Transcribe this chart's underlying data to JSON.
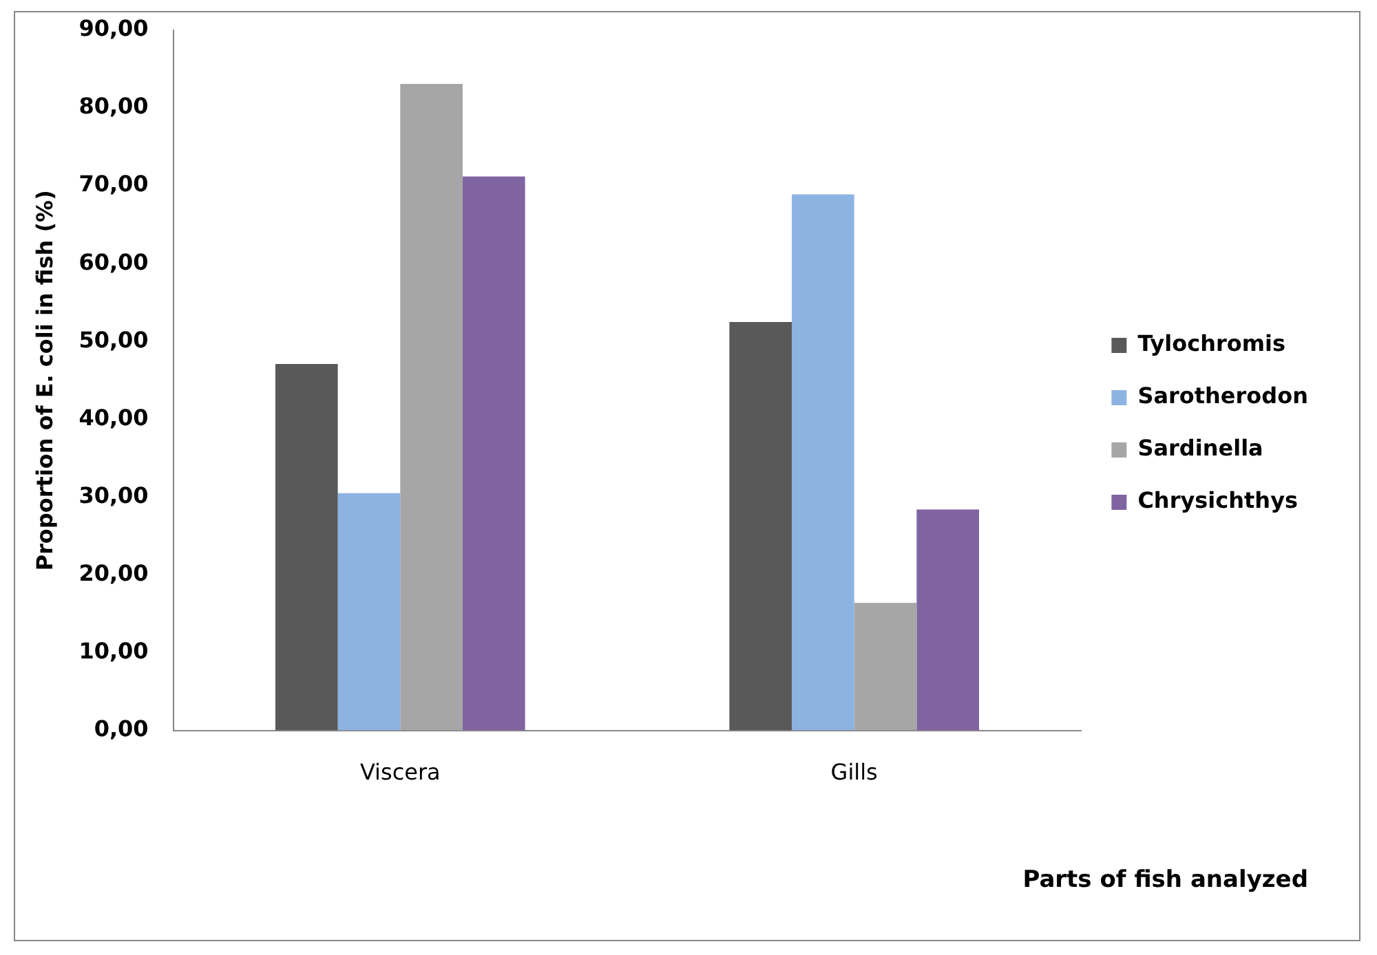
{
  "chart_data": {
    "type": "bar",
    "xlabel": "Parts of fish analyzed",
    "ylabel": "Proportion of E. coli in fish (%)",
    "categories": [
      "Viscera",
      "Gills"
    ],
    "series": [
      {
        "name": "Tylochromis",
        "color": "#595959",
        "values": [
          47.1,
          52.5
        ]
      },
      {
        "name": "Sarotherodon",
        "color": "#8db3e2",
        "values": [
          30.5,
          68.9
        ]
      },
      {
        "name": "Sardinella",
        "color": "#a6a6a6",
        "values": [
          83.1,
          16.4
        ]
      },
      {
        "name": "Chrysichthys",
        "color": "#8064a2",
        "values": [
          71.2,
          28.4
        ]
      }
    ],
    "ylim": [
      0,
      90
    ],
    "yticks": [
      {
        "value": 0,
        "label": "0,00"
      },
      {
        "value": 10,
        "label": "10,00"
      },
      {
        "value": 20,
        "label": "20,00"
      },
      {
        "value": 30,
        "label": "30,00"
      },
      {
        "value": 40,
        "label": "40,00"
      },
      {
        "value": 50,
        "label": "50,00"
      },
      {
        "value": 60,
        "label": "60,00"
      },
      {
        "value": 70,
        "label": "70,00"
      },
      {
        "value": 80,
        "label": "80,00"
      },
      {
        "value": 90,
        "label": "90,00"
      }
    ],
    "grid": false,
    "legend": "right"
  }
}
